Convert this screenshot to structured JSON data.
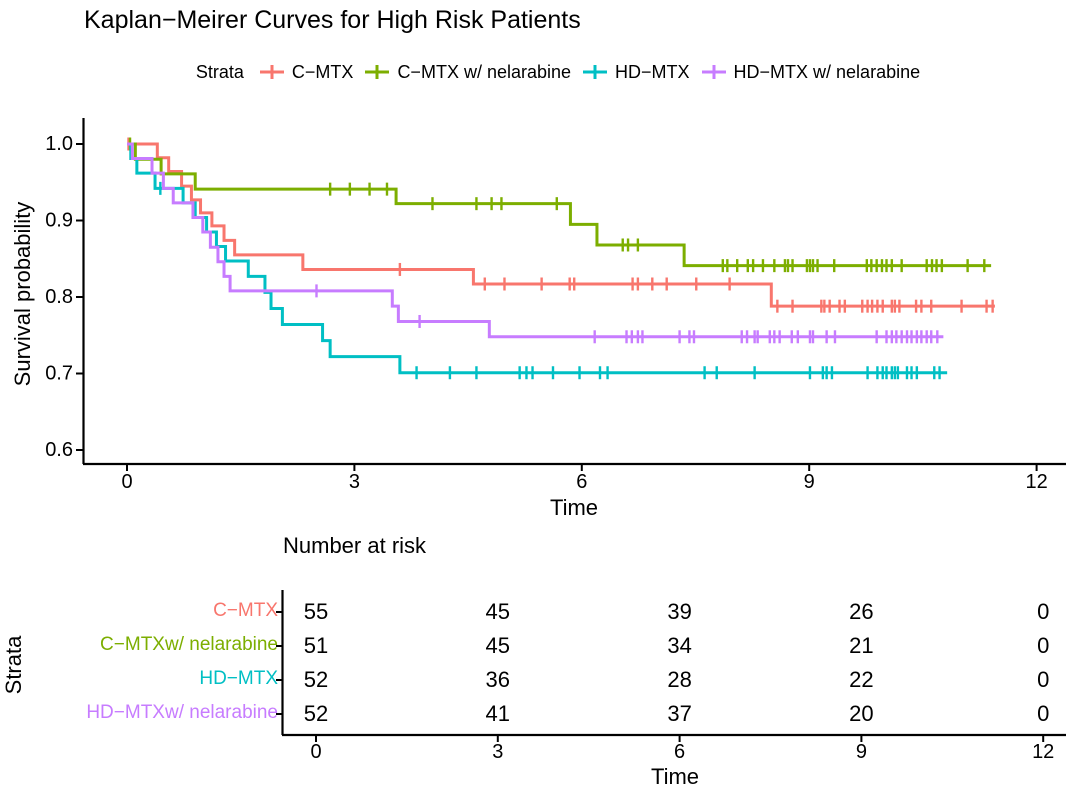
{
  "title": "Kaplan−Meirer Curves for High Risk Patients",
  "legend": {
    "label": "Strata"
  },
  "axes": {
    "y_label": "Survival probability",
    "x_label": "Time",
    "y_ticks": [
      1.0,
      0.9,
      0.8,
      0.7,
      0.6
    ],
    "x_ticks": [
      0,
      3,
      6,
      9,
      12
    ]
  },
  "risk_table": {
    "title": "Number at risk",
    "y_label": "Strata",
    "x_label": "Time",
    "time_points": [
      0,
      3,
      6,
      9,
      12
    ],
    "rows": [
      {
        "label": "C−MTX",
        "color": "#F8766D",
        "counts": [
          55,
          45,
          39,
          26,
          0
        ]
      },
      {
        "label": "C−MTXw/ nelarabine",
        "color": "#7CAE00",
        "counts": [
          51,
          45,
          34,
          21,
          0
        ]
      },
      {
        "label": "HD−MTX",
        "color": "#00BFC4",
        "counts": [
          52,
          36,
          28,
          22,
          0
        ]
      },
      {
        "label": "HD−MTXw/ nelarabine",
        "color": "#C77CFF",
        "counts": [
          52,
          41,
          37,
          20,
          0
        ]
      }
    ]
  },
  "chart_data": {
    "type": "line",
    "subtype": "kaplan-meier-step",
    "title": "Kaplan−Meirer Curves for High Risk Patients",
    "xlabel": "Time",
    "ylabel": "Survival probability",
    "xlim": [
      0,
      12
    ],
    "ylim": [
      0.6,
      1.0
    ],
    "x_ticks": [
      0,
      3,
      6,
      9,
      12
    ],
    "y_ticks": [
      1.0,
      0.9,
      0.8,
      0.7,
      0.6
    ],
    "grid": false,
    "legend_position": "top",
    "series": [
      {
        "name": "C−MTX",
        "color": "#F8766D",
        "n_start": 55,
        "steps": [
          [
            0,
            1.0
          ],
          [
            0.4,
            0.982
          ],
          [
            0.55,
            0.964
          ],
          [
            0.72,
            0.945
          ],
          [
            0.85,
            0.927
          ],
          [
            0.97,
            0.91
          ],
          [
            1.12,
            0.893
          ],
          [
            1.28,
            0.874
          ],
          [
            1.42,
            0.855
          ],
          [
            2.32,
            0.836
          ],
          [
            4.57,
            0.817
          ],
          [
            8.5,
            0.788
          ]
        ],
        "end_time": 11.45,
        "censor_times": [
          0.02,
          3.6,
          4.72,
          4.98,
          5.47,
          5.84,
          5.9,
          6.67,
          6.74,
          6.93,
          7.12,
          7.51,
          7.95,
          8.58,
          8.78,
          9.16,
          9.2,
          9.27,
          9.4,
          9.47,
          9.7,
          9.77,
          9.83,
          9.9,
          9.97,
          10.09,
          10.13,
          10.19,
          10.41,
          10.48,
          10.61,
          11.01,
          11.34,
          11.42
        ]
      },
      {
        "name": "C−MTX w/ nelarabine",
        "color": "#7CAE00",
        "n_start": 51,
        "steps": [
          [
            0,
            1.0
          ],
          [
            0.11,
            0.98
          ],
          [
            0.45,
            0.961
          ],
          [
            0.9,
            0.941
          ],
          [
            3.55,
            0.922
          ],
          [
            5.85,
            0.895
          ],
          [
            6.2,
            0.868
          ],
          [
            7.35,
            0.841
          ]
        ],
        "end_time": 11.4,
        "censor_times": [
          0.04,
          2.68,
          2.94,
          3.2,
          3.43,
          4.03,
          4.61,
          4.81,
          4.94,
          5.67,
          6.54,
          6.61,
          6.74,
          7.86,
          7.92,
          8.05,
          8.19,
          8.26,
          8.39,
          8.54,
          8.68,
          8.72,
          8.78,
          8.97,
          9.01,
          9.05,
          9.11,
          9.33,
          9.76,
          9.82,
          9.89,
          9.96,
          10.02,
          10.09,
          10.22,
          10.55,
          10.62,
          10.68,
          10.75,
          11.09,
          11.31
        ]
      },
      {
        "name": "HD−MTX",
        "color": "#00BFC4",
        "n_start": 52,
        "steps": [
          [
            0,
            1.0
          ],
          [
            0.05,
            0.981
          ],
          [
            0.13,
            0.962
          ],
          [
            0.37,
            0.942
          ],
          [
            0.74,
            0.923
          ],
          [
            0.9,
            0.904
          ],
          [
            1.05,
            0.885
          ],
          [
            1.18,
            0.866
          ],
          [
            1.3,
            0.847
          ],
          [
            1.6,
            0.827
          ],
          [
            1.82,
            0.806
          ],
          [
            1.9,
            0.785
          ],
          [
            2.05,
            0.764
          ],
          [
            2.58,
            0.743
          ],
          [
            2.68,
            0.722
          ],
          [
            3.6,
            0.701
          ]
        ],
        "end_time": 10.82,
        "censor_times": [
          0.44,
          3.82,
          4.26,
          4.61,
          5.18,
          5.27,
          5.35,
          5.62,
          5.97,
          6.24,
          6.34,
          7.62,
          7.78,
          8.28,
          9.01,
          9.18,
          9.23,
          9.3,
          9.77,
          9.9,
          9.97,
          10.02,
          10.09,
          10.13,
          10.17,
          10.29,
          10.35,
          10.42,
          10.65,
          10.72
        ]
      },
      {
        "name": "HD−MTX w/ nelarabine",
        "color": "#C77CFF",
        "n_start": 52,
        "steps": [
          [
            0,
            1.0
          ],
          [
            0.07,
            0.981
          ],
          [
            0.33,
            0.962
          ],
          [
            0.48,
            0.942
          ],
          [
            0.61,
            0.923
          ],
          [
            0.87,
            0.904
          ],
          [
            1.0,
            0.885
          ],
          [
            1.1,
            0.865
          ],
          [
            1.2,
            0.846
          ],
          [
            1.28,
            0.827
          ],
          [
            1.36,
            0.808
          ],
          [
            3.5,
            0.788
          ],
          [
            3.58,
            0.768
          ],
          [
            4.78,
            0.748
          ]
        ],
        "end_time": 10.77,
        "censor_times": [
          2.5,
          3.86,
          6.17,
          6.59,
          6.66,
          6.74,
          6.8,
          7.29,
          7.42,
          7.48,
          8.11,
          8.18,
          8.28,
          8.32,
          8.48,
          8.54,
          8.61,
          8.77,
          8.85,
          9.01,
          9.05,
          9.23,
          9.34,
          9.89,
          10.02,
          10.09,
          10.15,
          10.22,
          10.29,
          10.35,
          10.42,
          10.48,
          10.55,
          10.61,
          10.69
        ]
      }
    ]
  }
}
